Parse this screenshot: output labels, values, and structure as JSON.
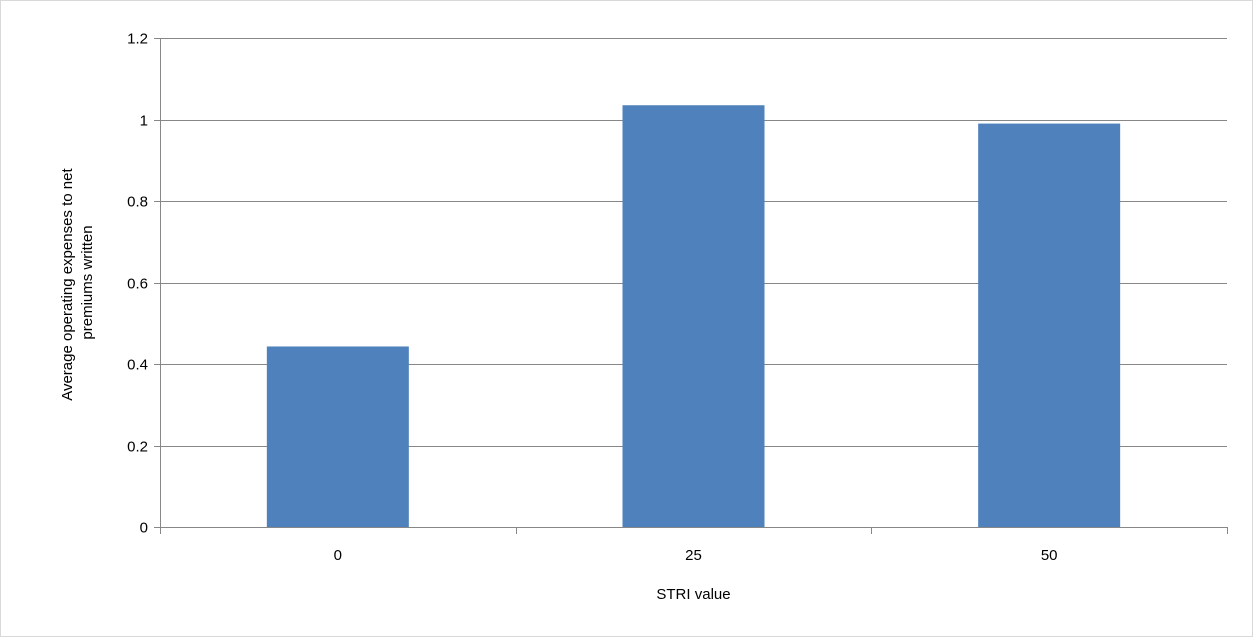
{
  "chart_data": {
    "type": "bar",
    "title": "",
    "xlabel": "STRI value",
    "ylabel_lines": [
      "Average operating expenses to net",
      "premiums written"
    ],
    "categories": [
      "0",
      "25",
      "50"
    ],
    "values": [
      0.443,
      1.035,
      0.99
    ],
    "ylim": [
      0,
      1.2
    ],
    "yticks": [
      "0",
      "0.2",
      "0.4",
      "0.6",
      "0.8",
      "1",
      "1.2"
    ],
    "grid": true,
    "legend": "none",
    "colors": {
      "bar": "#4f81bd",
      "grid": "#878787",
      "axis": "#878787",
      "frame": "#d9d9d9"
    }
  }
}
